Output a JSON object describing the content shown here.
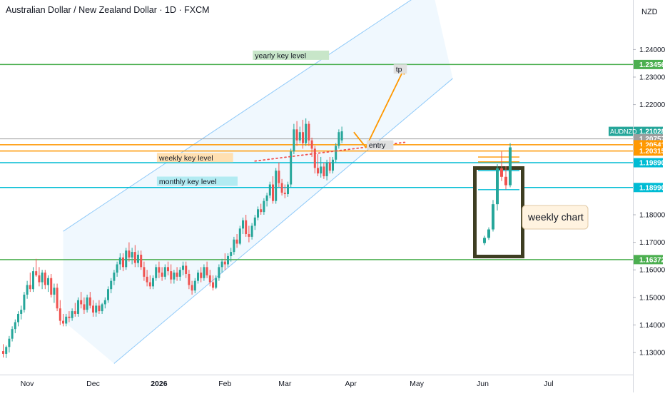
{
  "header": {
    "title": "Australian Dollar / New Zealand Dollar · 1D · FXCM"
  },
  "axis": {
    "currency": "NZD",
    "symbol": "AUDNZD"
  },
  "colors": {
    "up": "#26a69a",
    "down": "#ef5350",
    "green_line": "#4caf50",
    "orange_line": "#ff9800",
    "cyan_line": "#00bcd4",
    "gray_line": "#9e9e9e",
    "channel": "#90caf9"
  },
  "chart_data": {
    "type": "candlestick",
    "title": "Australian Dollar / New Zealand Dollar · 1D · FXCM",
    "ylim": [
      1.125,
      1.2485
    ],
    "y_ticks": [
      {
        "v": 1.24,
        "label": "1.24000"
      },
      {
        "v": 1.23,
        "label": "1.23000"
      },
      {
        "v": 1.22,
        "label": "1.22000"
      },
      {
        "v": 1.18,
        "label": "1.18000"
      },
      {
        "v": 1.17,
        "label": "1.17000"
      },
      {
        "v": 1.16,
        "label": "1.16000"
      },
      {
        "v": 1.15,
        "label": "1.15000"
      },
      {
        "v": 1.14,
        "label": "1.14000"
      },
      {
        "v": 1.13,
        "label": "1.13000"
      }
    ],
    "x_ticks": [
      {
        "i": 8,
        "label": "Nov",
        "bold": false
      },
      {
        "i": 30,
        "label": "Dec",
        "bold": false
      },
      {
        "i": 52,
        "label": "2026",
        "bold": true
      },
      {
        "i": 74,
        "label": "Feb",
        "bold": false
      },
      {
        "i": 94,
        "label": "Mar",
        "bold": false
      },
      {
        "i": 116,
        "label": "Apr",
        "bold": false
      },
      {
        "i": 138,
        "label": "May",
        "bold": false
      },
      {
        "i": 160,
        "label": "Jun",
        "bold": false
      },
      {
        "i": 182,
        "label": "Jul",
        "bold": false
      }
    ],
    "price_tags": [
      {
        "v": 1.23456,
        "label": "1.23456",
        "color": "#4caf50"
      },
      {
        "v": 1.21028,
        "label": "1.21028",
        "color": "#26a69a"
      },
      {
        "v": 1.20757,
        "label": "1.20757",
        "color": "#9e9e9e"
      },
      {
        "v": 1.20541,
        "label": "1.20541",
        "color": "#ff9800"
      },
      {
        "v": 1.20315,
        "label": "1.20315",
        "color": "#ff9800"
      },
      {
        "v": 1.1989,
        "label": "1.19890",
        "color": "#00bcd4"
      },
      {
        "v": 1.1899,
        "label": "1.18990",
        "color": "#00bcd4"
      },
      {
        "v": 1.16372,
        "label": "1.16372",
        "color": "#4caf50"
      }
    ],
    "levels": [
      {
        "v": 1.23456,
        "color": "#4caf50",
        "width": 1.5
      },
      {
        "v": 1.20757,
        "color": "#9e9e9e",
        "width": 1
      },
      {
        "v": 1.20541,
        "color": "#ff9800",
        "width": 1.5
      },
      {
        "v": 1.20315,
        "color": "#ff9800",
        "width": 1.5
      },
      {
        "v": 1.1989,
        "color": "#00bcd4",
        "width": 1.5
      },
      {
        "v": 1.1899,
        "color": "#00bcd4",
        "width": 1.5
      },
      {
        "v": 1.16372,
        "color": "#4caf50",
        "width": 1.5
      }
    ],
    "annotations": [
      {
        "text": "yearly key level",
        "bg": "#c8e6c9",
        "i": 84,
        "v": 1.2378
      },
      {
        "text": "weekly key level",
        "bg": "#ffe0b2",
        "i": 52,
        "v": 1.20065
      },
      {
        "text": "monthly key level",
        "bg": "#b2ebf2",
        "i": 52,
        "v": 1.19205
      },
      {
        "text": "entry",
        "bg": "#e0e0e0",
        "i": 122,
        "v": 1.2052
      },
      {
        "text": "tp",
        "bg": "#e0e0e0",
        "i": 131,
        "v": 1.2328
      }
    ],
    "channel": {
      "upper": [
        [
          20,
          1.174
        ],
        [
          143,
          1.263
        ]
      ],
      "lower": [
        [
          37,
          1.126
        ],
        [
          150,
          1.2295
        ]
      ],
      "lower_ext_left": [
        [
          20,
          1.1415
        ],
        [
          37,
          1.126
        ]
      ]
    },
    "trendline": [
      [
        84,
        1.1995
      ],
      [
        134,
        1.2063
      ]
    ],
    "projection": [
      [
        117,
        1.21
      ],
      [
        121,
        1.2045
      ],
      [
        134,
        1.2335
      ]
    ],
    "weekly_label": "weekly chart",
    "candles": [
      {
        "o": 1.1305,
        "h": 1.133,
        "l": 1.1282,
        "c": 1.1295
      },
      {
        "o": 1.1295,
        "h": 1.1325,
        "l": 1.128,
        "c": 1.132
      },
      {
        "o": 1.132,
        "h": 1.136,
        "l": 1.13,
        "c": 1.135
      },
      {
        "o": 1.135,
        "h": 1.1395,
        "l": 1.134,
        "c": 1.1385
      },
      {
        "o": 1.1385,
        "h": 1.142,
        "l": 1.137,
        "c": 1.141
      },
      {
        "o": 1.141,
        "h": 1.145,
        "l": 1.1395,
        "c": 1.144
      },
      {
        "o": 1.144,
        "h": 1.147,
        "l": 1.142,
        "c": 1.1455
      },
      {
        "o": 1.1455,
        "h": 1.152,
        "l": 1.1445,
        "c": 1.151
      },
      {
        "o": 1.151,
        "h": 1.156,
        "l": 1.1495,
        "c": 1.1545
      },
      {
        "o": 1.1545,
        "h": 1.159,
        "l": 1.152,
        "c": 1.153
      },
      {
        "o": 1.153,
        "h": 1.161,
        "l": 1.152,
        "c": 1.1595
      },
      {
        "o": 1.1595,
        "h": 1.164,
        "l": 1.1575,
        "c": 1.158
      },
      {
        "o": 1.158,
        "h": 1.161,
        "l": 1.154,
        "c": 1.1555
      },
      {
        "o": 1.1555,
        "h": 1.16,
        "l": 1.153,
        "c": 1.159
      },
      {
        "o": 1.159,
        "h": 1.16,
        "l": 1.153,
        "c": 1.1545
      },
      {
        "o": 1.1545,
        "h": 1.158,
        "l": 1.152,
        "c": 1.157
      },
      {
        "o": 1.157,
        "h": 1.1585,
        "l": 1.15,
        "c": 1.151
      },
      {
        "o": 1.151,
        "h": 1.155,
        "l": 1.148,
        "c": 1.1535
      },
      {
        "o": 1.1535,
        "h": 1.155,
        "l": 1.145,
        "c": 1.146
      },
      {
        "o": 1.146,
        "h": 1.149,
        "l": 1.14,
        "c": 1.1415
      },
      {
        "o": 1.1415,
        "h": 1.144,
        "l": 1.1395,
        "c": 1.1405
      },
      {
        "o": 1.1405,
        "h": 1.144,
        "l": 1.1395,
        "c": 1.143
      },
      {
        "o": 1.143,
        "h": 1.145,
        "l": 1.141,
        "c": 1.1425
      },
      {
        "o": 1.1425,
        "h": 1.146,
        "l": 1.1415,
        "c": 1.145
      },
      {
        "o": 1.145,
        "h": 1.148,
        "l": 1.143,
        "c": 1.144
      },
      {
        "o": 1.144,
        "h": 1.15,
        "l": 1.143,
        "c": 1.149
      },
      {
        "o": 1.149,
        "h": 1.152,
        "l": 1.146,
        "c": 1.1475
      },
      {
        "o": 1.1475,
        "h": 1.15,
        "l": 1.144,
        "c": 1.1455
      },
      {
        "o": 1.1455,
        "h": 1.151,
        "l": 1.1445,
        "c": 1.15
      },
      {
        "o": 1.15,
        "h": 1.152,
        "l": 1.146,
        "c": 1.147
      },
      {
        "o": 1.147,
        "h": 1.149,
        "l": 1.143,
        "c": 1.1445
      },
      {
        "o": 1.1445,
        "h": 1.148,
        "l": 1.143,
        "c": 1.147
      },
      {
        "o": 1.147,
        "h": 1.149,
        "l": 1.144,
        "c": 1.145
      },
      {
        "o": 1.145,
        "h": 1.148,
        "l": 1.144,
        "c": 1.1475
      },
      {
        "o": 1.1475,
        "h": 1.15,
        "l": 1.146,
        "c": 1.149
      },
      {
        "o": 1.149,
        "h": 1.154,
        "l": 1.148,
        "c": 1.153
      },
      {
        "o": 1.153,
        "h": 1.157,
        "l": 1.1515,
        "c": 1.156
      },
      {
        "o": 1.156,
        "h": 1.16,
        "l": 1.1545,
        "c": 1.159
      },
      {
        "o": 1.159,
        "h": 1.163,
        "l": 1.1575,
        "c": 1.162
      },
      {
        "o": 1.162,
        "h": 1.166,
        "l": 1.16,
        "c": 1.1645
      },
      {
        "o": 1.1645,
        "h": 1.166,
        "l": 1.1595,
        "c": 1.161
      },
      {
        "o": 1.161,
        "h": 1.168,
        "l": 1.16,
        "c": 1.167
      },
      {
        "o": 1.167,
        "h": 1.17,
        "l": 1.163,
        "c": 1.1645
      },
      {
        "o": 1.1645,
        "h": 1.168,
        "l": 1.162,
        "c": 1.1665
      },
      {
        "o": 1.1665,
        "h": 1.169,
        "l": 1.161,
        "c": 1.1625
      },
      {
        "o": 1.1625,
        "h": 1.167,
        "l": 1.161,
        "c": 1.1655
      },
      {
        "o": 1.1655,
        "h": 1.167,
        "l": 1.16,
        "c": 1.161
      },
      {
        "o": 1.161,
        "h": 1.163,
        "l": 1.156,
        "c": 1.1575
      },
      {
        "o": 1.1575,
        "h": 1.16,
        "l": 1.154,
        "c": 1.1555
      },
      {
        "o": 1.1555,
        "h": 1.158,
        "l": 1.153,
        "c": 1.154
      },
      {
        "o": 1.154,
        "h": 1.158,
        "l": 1.153,
        "c": 1.157
      },
      {
        "o": 1.157,
        "h": 1.162,
        "l": 1.156,
        "c": 1.161
      },
      {
        "o": 1.161,
        "h": 1.163,
        "l": 1.157,
        "c": 1.159
      },
      {
        "o": 1.159,
        "h": 1.161,
        "l": 1.156,
        "c": 1.1575
      },
      {
        "o": 1.1575,
        "h": 1.162,
        "l": 1.1565,
        "c": 1.161
      },
      {
        "o": 1.161,
        "h": 1.163,
        "l": 1.158,
        "c": 1.1595
      },
      {
        "o": 1.1595,
        "h": 1.162,
        "l": 1.155,
        "c": 1.1565
      },
      {
        "o": 1.1565,
        "h": 1.16,
        "l": 1.155,
        "c": 1.159
      },
      {
        "o": 1.159,
        "h": 1.161,
        "l": 1.156,
        "c": 1.1575
      },
      {
        "o": 1.1575,
        "h": 1.161,
        "l": 1.156,
        "c": 1.16
      },
      {
        "o": 1.16,
        "h": 1.163,
        "l": 1.158,
        "c": 1.1615
      },
      {
        "o": 1.1615,
        "h": 1.163,
        "l": 1.157,
        "c": 1.1585
      },
      {
        "o": 1.1585,
        "h": 1.16,
        "l": 1.153,
        "c": 1.1545
      },
      {
        "o": 1.1545,
        "h": 1.156,
        "l": 1.151,
        "c": 1.1525
      },
      {
        "o": 1.1525,
        "h": 1.157,
        "l": 1.1515,
        "c": 1.156
      },
      {
        "o": 1.156,
        "h": 1.16,
        "l": 1.155,
        "c": 1.159
      },
      {
        "o": 1.159,
        "h": 1.161,
        "l": 1.1555,
        "c": 1.157
      },
      {
        "o": 1.157,
        "h": 1.162,
        "l": 1.156,
        "c": 1.161
      },
      {
        "o": 1.161,
        "h": 1.163,
        "l": 1.157,
        "c": 1.158
      },
      {
        "o": 1.158,
        "h": 1.16,
        "l": 1.154,
        "c": 1.1555
      },
      {
        "o": 1.1555,
        "h": 1.158,
        "l": 1.1525,
        "c": 1.1535
      },
      {
        "o": 1.1535,
        "h": 1.158,
        "l": 1.153,
        "c": 1.157
      },
      {
        "o": 1.157,
        "h": 1.162,
        "l": 1.156,
        "c": 1.161
      },
      {
        "o": 1.161,
        "h": 1.164,
        "l": 1.159,
        "c": 1.163
      },
      {
        "o": 1.163,
        "h": 1.166,
        "l": 1.16,
        "c": 1.162
      },
      {
        "o": 1.162,
        "h": 1.166,
        "l": 1.161,
        "c": 1.165
      },
      {
        "o": 1.165,
        "h": 1.168,
        "l": 1.163,
        "c": 1.1665
      },
      {
        "o": 1.1665,
        "h": 1.172,
        "l": 1.1655,
        "c": 1.171
      },
      {
        "o": 1.171,
        "h": 1.173,
        "l": 1.168,
        "c": 1.1695
      },
      {
        "o": 1.1695,
        "h": 1.176,
        "l": 1.169,
        "c": 1.175
      },
      {
        "o": 1.175,
        "h": 1.179,
        "l": 1.173,
        "c": 1.178
      },
      {
        "o": 1.178,
        "h": 1.18,
        "l": 1.172,
        "c": 1.173
      },
      {
        "o": 1.173,
        "h": 1.176,
        "l": 1.17,
        "c": 1.172
      },
      {
        "o": 1.172,
        "h": 1.177,
        "l": 1.171,
        "c": 1.176
      },
      {
        "o": 1.176,
        "h": 1.18,
        "l": 1.1745,
        "c": 1.179
      },
      {
        "o": 1.179,
        "h": 1.183,
        "l": 1.178,
        "c": 1.182
      },
      {
        "o": 1.182,
        "h": 1.184,
        "l": 1.18,
        "c": 1.181
      },
      {
        "o": 1.181,
        "h": 1.186,
        "l": 1.18,
        "c": 1.185
      },
      {
        "o": 1.185,
        "h": 1.188,
        "l": 1.183,
        "c": 1.187
      },
      {
        "o": 1.187,
        "h": 1.192,
        "l": 1.186,
        "c": 1.191
      },
      {
        "o": 1.191,
        "h": 1.194,
        "l": 1.184,
        "c": 1.185
      },
      {
        "o": 1.185,
        "h": 1.197,
        "l": 1.184,
        "c": 1.196
      },
      {
        "o": 1.196,
        "h": 1.199,
        "l": 1.19,
        "c": 1.1915
      },
      {
        "o": 1.1915,
        "h": 1.193,
        "l": 1.187,
        "c": 1.188
      },
      {
        "o": 1.188,
        "h": 1.191,
        "l": 1.186,
        "c": 1.1875
      },
      {
        "o": 1.1875,
        "h": 1.192,
        "l": 1.1865,
        "c": 1.191
      },
      {
        "o": 1.191,
        "h": 1.204,
        "l": 1.19,
        "c": 1.203
      },
      {
        "o": 1.203,
        "h": 1.213,
        "l": 1.202,
        "c": 1.211
      },
      {
        "o": 1.211,
        "h": 1.214,
        "l": 1.205,
        "c": 1.207
      },
      {
        "o": 1.207,
        "h": 1.212,
        "l": 1.206,
        "c": 1.21
      },
      {
        "o": 1.21,
        "h": 1.2145,
        "l": 1.204,
        "c": 1.206
      },
      {
        "o": 1.206,
        "h": 1.215,
        "l": 1.205,
        "c": 1.213
      },
      {
        "o": 1.213,
        "h": 1.214,
        "l": 1.205,
        "c": 1.207
      },
      {
        "o": 1.207,
        "h": 1.208,
        "l": 1.201,
        "c": 1.204
      },
      {
        "o": 1.204,
        "h": 1.205,
        "l": 1.195,
        "c": 1.197
      },
      {
        "o": 1.197,
        "h": 1.202,
        "l": 1.194,
        "c": 1.195
      },
      {
        "o": 1.195,
        "h": 1.201,
        "l": 1.1935,
        "c": 1.1975
      },
      {
        "o": 1.1975,
        "h": 1.199,
        "l": 1.193,
        "c": 1.194
      },
      {
        "o": 1.194,
        "h": 1.2,
        "l": 1.1925,
        "c": 1.199
      },
      {
        "o": 1.199,
        "h": 1.201,
        "l": 1.195,
        "c": 1.196
      },
      {
        "o": 1.196,
        "h": 1.201,
        "l": 1.195,
        "c": 1.2
      },
      {
        "o": 1.2,
        "h": 1.206,
        "l": 1.199,
        "c": 1.205
      },
      {
        "o": 1.205,
        "h": 1.211,
        "l": 1.204,
        "c": 1.21
      },
      {
        "o": 1.207,
        "h": 1.212,
        "l": 1.206,
        "c": 1.2103
      }
    ],
    "weekly_candles": [
      {
        "o": 1.1645,
        "h": 1.168,
        "l": 1.1635,
        "c": 1.167
      },
      {
        "o": 1.167,
        "h": 1.172,
        "l": 1.166,
        "c": 1.171
      },
      {
        "o": 1.171,
        "h": 1.185,
        "l": 1.17,
        "c": 1.183
      },
      {
        "o": 1.183,
        "h": 1.202,
        "l": 1.18,
        "c": 1.2
      },
      {
        "o": 1.2,
        "h": 1.208,
        "l": 1.194,
        "c": 1.196
      },
      {
        "o": 1.196,
        "h": 1.201,
        "l": 1.19,
        "c": 1.192
      },
      {
        "o": 1.192,
        "h": 1.212,
        "l": 1.191,
        "c": 1.21
      }
    ]
  }
}
